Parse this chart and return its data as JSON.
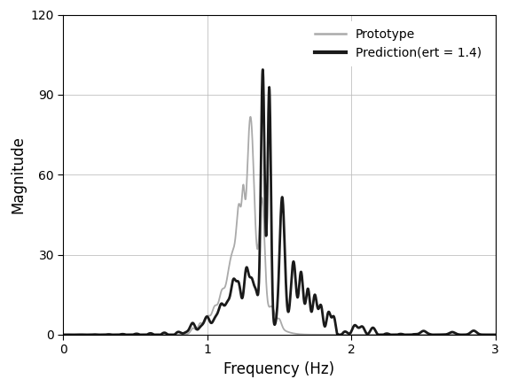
{
  "title": "",
  "xlabel": "Frequency (Hz)",
  "ylabel": "Magnitude",
  "xlim": [
    0,
    3
  ],
  "ylim": [
    0,
    120
  ],
  "yticks": [
    0,
    30,
    60,
    90,
    120
  ],
  "xticks": [
    0,
    1,
    2,
    3
  ],
  "legend_labels": [
    "Prototype",
    "Prediction(ert = 1.4)"
  ],
  "prototype_color": "#aaaaaa",
  "prediction_color": "#1a1a1a",
  "prototype_linewidth": 1.3,
  "prediction_linewidth": 2.0,
  "grid_color": "#bbbbbb",
  "background_color": "#ffffff"
}
